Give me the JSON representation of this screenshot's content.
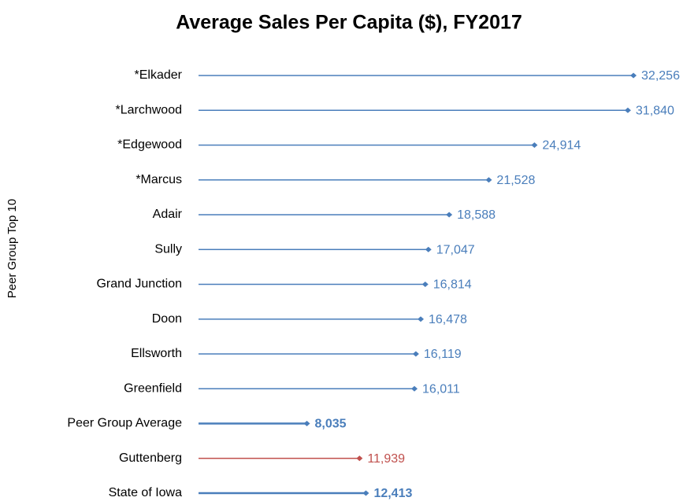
{
  "chart_data": {
    "type": "lollipop",
    "title": "Average Sales Per Capita ($), FY2017",
    "y_label": "Peer Group Top 10",
    "categories": [
      "*Elkader",
      "*Larchwood",
      "*Edgewood",
      "*Marcus",
      "Adair",
      "Sully",
      "Grand Junction",
      "Doon",
      "Ellsworth",
      "Greenfield",
      "Peer Group Average",
      "Guttenberg",
      "State of Iowa"
    ],
    "values": [
      32256,
      31840,
      24914,
      21528,
      18588,
      17047,
      16814,
      16478,
      16119,
      16011,
      8035,
      11939,
      12413
    ],
    "value_labels": [
      "32,256",
      "31,840",
      "24,914",
      "21,528",
      "18,588",
      "17,047",
      "16,814",
      "16,478",
      "16,119",
      "16,011",
      "8,035",
      "11,939",
      "12,413"
    ],
    "colors": [
      "#4a7ebb",
      "#4a7ebb",
      "#4a7ebb",
      "#4a7ebb",
      "#4a7ebb",
      "#4a7ebb",
      "#4a7ebb",
      "#4a7ebb",
      "#4a7ebb",
      "#4a7ebb",
      "#4a7ebb",
      "#c0504d",
      "#4a7ebb"
    ],
    "bold": [
      false,
      false,
      false,
      false,
      false,
      false,
      false,
      false,
      false,
      false,
      true,
      false,
      true
    ],
    "xlim": [
      0,
      35000
    ]
  }
}
